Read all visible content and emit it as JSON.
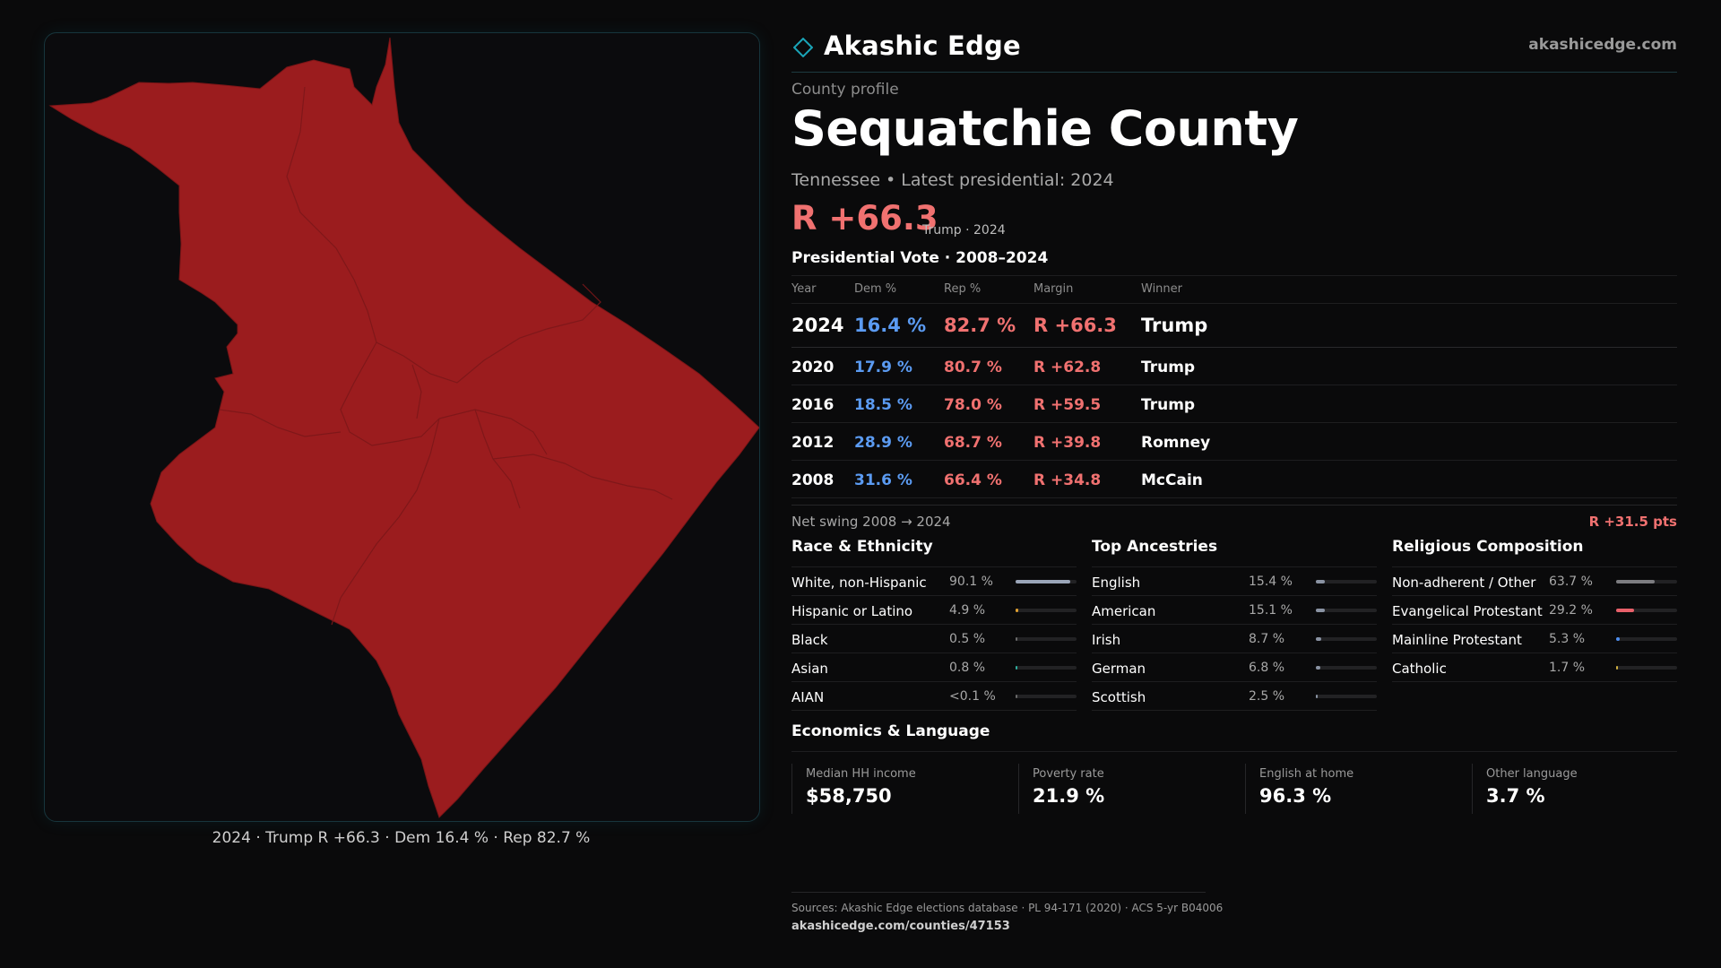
{
  "brand": {
    "name": "Akashic Edge",
    "url": "akashicedge.com",
    "accent": "#1aa5b8"
  },
  "header": {
    "kicker": "County profile",
    "county": "Sequatchie County",
    "subtitle": "Tennessee • Latest presidential: 2024",
    "margin": "R +66.3",
    "margin_note": "Trump · 2024"
  },
  "map": {
    "fill_color": "#9b1c1e",
    "caption": "2024 · Trump R +66.3 · Dem 16.4 % · Rep 82.7 %"
  },
  "vote_table": {
    "title": "Presidential Vote · 2008–2024",
    "headers": [
      "Year",
      "Dem %",
      "Rep %",
      "Margin",
      "Winner"
    ],
    "rows": [
      {
        "year": "2024",
        "dem": "16.4 %",
        "rep": "82.7 %",
        "margin": "R +66.3",
        "winner": "Trump"
      },
      {
        "year": "2020",
        "dem": "17.9 %",
        "rep": "80.7 %",
        "margin": "R +62.8",
        "winner": "Trump"
      },
      {
        "year": "2016",
        "dem": "18.5 %",
        "rep": "78.0 %",
        "margin": "R +59.5",
        "winner": "Trump"
      },
      {
        "year": "2012",
        "dem": "28.9 %",
        "rep": "68.7 %",
        "margin": "R +39.8",
        "winner": "Romney"
      },
      {
        "year": "2008",
        "dem": "31.6 %",
        "rep": "66.4 %",
        "margin": "R +34.8",
        "winner": "McCain"
      }
    ],
    "dem_color": "#5b9bf2",
    "rep_color": "#f07170"
  },
  "swing": {
    "label": "Net swing 2008 → 2024",
    "value": "R +31.5 pts"
  },
  "race": {
    "title": "Race & Ethnicity",
    "rows": [
      {
        "label": "White, non-Hispanic",
        "value": "90.1 %",
        "pct": 90.1,
        "color": "#9aa5b8"
      },
      {
        "label": "Hispanic or Latino",
        "value": "4.9 %",
        "pct": 4.9,
        "color": "#e0a030"
      },
      {
        "label": "Black",
        "value": "0.5 %",
        "pct": 0.5,
        "color": "#6a6a6a"
      },
      {
        "label": "Asian",
        "value": "0.8 %",
        "pct": 0.8,
        "color": "#2fb0a0"
      },
      {
        "label": "AIAN",
        "value": "<0.1 %",
        "pct": 0.05,
        "color": "#6a6a6a"
      }
    ]
  },
  "ancestry": {
    "title": "Top Ancestries",
    "rows": [
      {
        "label": "English",
        "value": "15.4 %",
        "pct": 15.4,
        "color": "#8a93a3"
      },
      {
        "label": "American",
        "value": "15.1 %",
        "pct": 15.1,
        "color": "#8a93a3"
      },
      {
        "label": "Irish",
        "value": "8.7 %",
        "pct": 8.7,
        "color": "#8a93a3"
      },
      {
        "label": "German",
        "value": "6.8 %",
        "pct": 6.8,
        "color": "#8a93a3"
      },
      {
        "label": "Scottish",
        "value": "2.5 %",
        "pct": 2.5,
        "color": "#8a93a3"
      }
    ]
  },
  "religion": {
    "title": "Religious Composition",
    "rows": [
      {
        "label": "Non-adherent / Other",
        "value": "63.7 %",
        "pct": 63.7,
        "color": "#7c7c80"
      },
      {
        "label": "Evangelical Protestant",
        "value": "29.2 %",
        "pct": 29.2,
        "color": "#e8606a"
      },
      {
        "label": "Mainline Protestant",
        "value": "5.3 %",
        "pct": 5.3,
        "color": "#4d8ef0"
      },
      {
        "label": "Catholic",
        "value": "1.7 %",
        "pct": 1.7,
        "color": "#d0b040"
      }
    ]
  },
  "economics": {
    "title": "Economics & Language",
    "cells": [
      {
        "label": "Median HH income",
        "value": "$58,750"
      },
      {
        "label": "Poverty rate",
        "value": "21.9 %"
      },
      {
        "label": "English at home",
        "value": "96.3 %"
      },
      {
        "label": "Other language",
        "value": "3.7 %"
      }
    ]
  },
  "footer": {
    "sources": "Sources: Akashic Edge elections database · PL 94-171 (2020) · ACS 5-yr B04006",
    "link": "akashicedge.com/counties/47153"
  }
}
